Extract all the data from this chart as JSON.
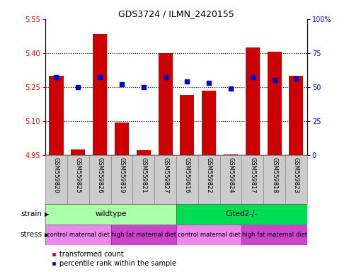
{
  "title": "GDS3724 / ILMN_2420155",
  "samples": [
    "GSM559820",
    "GSM559825",
    "GSM559826",
    "GSM559819",
    "GSM559821",
    "GSM559827",
    "GSM559616",
    "GSM559822",
    "GSM559824",
    "GSM559817",
    "GSM559818",
    "GSM559823"
  ],
  "bar_values": [
    5.3,
    4.975,
    5.485,
    5.093,
    4.972,
    5.4,
    5.215,
    5.235,
    4.952,
    5.425,
    5.405,
    5.3
  ],
  "percentile_values": [
    57,
    50,
    57,
    52,
    50,
    57,
    54,
    53,
    49,
    57,
    55,
    56
  ],
  "bar_bottom": 4.95,
  "ylim_left": [
    4.95,
    5.55
  ],
  "ylim_right": [
    0,
    100
  ],
  "yticks_left": [
    4.95,
    5.1,
    5.25,
    5.4,
    5.55
  ],
  "yticks_right": [
    0,
    25,
    50,
    75,
    100
  ],
  "hlines": [
    5.1,
    5.25,
    5.4
  ],
  "bar_color": "#cc0000",
  "percentile_color": "#0000cc",
  "strain_groups": [
    {
      "label": "wildtype",
      "start": 0,
      "end": 6,
      "color": "#aaffaa"
    },
    {
      "label": "Cited2-/-",
      "start": 6,
      "end": 12,
      "color": "#00dd55"
    }
  ],
  "stress_groups": [
    {
      "label": "control maternal diet",
      "start": 0,
      "end": 3,
      "color": "#ee88ee"
    },
    {
      "label": "high fat maternal diet",
      "start": 3,
      "end": 6,
      "color": "#cc44cc"
    },
    {
      "label": "control maternal diet",
      "start": 6,
      "end": 9,
      "color": "#ee88ee"
    },
    {
      "label": "high fat maternal diet",
      "start": 9,
      "end": 12,
      "color": "#cc44cc"
    }
  ]
}
